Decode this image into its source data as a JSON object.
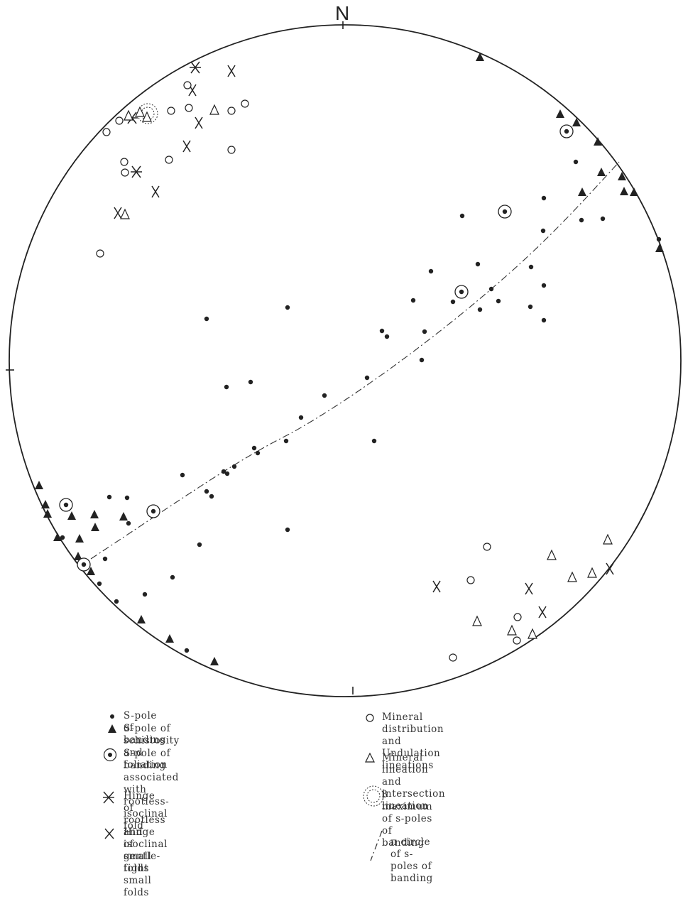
{
  "north_label": "N",
  "colors": {
    "ink": "#222222",
    "paper": "#ffffff"
  },
  "symbols": {
    "s_pole_banding": [
      [
        811,
        228
      ],
      [
        766,
        279
      ],
      [
        651,
        304
      ],
      [
        765,
        325
      ],
      [
        607,
        382
      ],
      [
        673,
        372
      ],
      [
        748,
        376
      ],
      [
        766,
        402
      ],
      [
        692,
        407
      ],
      [
        582,
        423
      ],
      [
        702,
        424
      ],
      [
        638,
        425
      ],
      [
        676,
        436
      ],
      [
        747,
        432
      ],
      [
        766,
        451
      ],
      [
        405,
        433
      ],
      [
        291,
        449
      ],
      [
        538,
        466
      ],
      [
        545,
        474
      ],
      [
        598,
        467
      ],
      [
        594,
        507
      ],
      [
        517,
        532
      ],
      [
        457,
        557
      ],
      [
        424,
        588
      ],
      [
        403,
        621
      ],
      [
        527,
        621
      ],
      [
        319,
        545
      ],
      [
        353,
        538
      ],
      [
        358,
        631
      ],
      [
        363,
        638
      ],
      [
        330,
        657
      ],
      [
        315,
        664
      ],
      [
        320,
        667
      ],
      [
        257,
        669
      ],
      [
        291,
        692
      ],
      [
        298,
        699
      ],
      [
        154,
        700
      ],
      [
        179,
        701
      ],
      [
        181,
        737
      ],
      [
        405,
        746
      ],
      [
        88,
        757
      ],
      [
        281,
        767
      ],
      [
        148,
        787
      ],
      [
        243,
        813
      ],
      [
        140,
        822
      ],
      [
        204,
        837
      ],
      [
        164,
        847
      ],
      [
        263,
        916
      ],
      [
        819,
        310
      ],
      [
        849,
        308
      ],
      [
        928,
        337
      ]
    ],
    "s_pole_schistosity": [
      [
        676,
        81
      ],
      [
        789,
        161
      ],
      [
        812,
        173
      ],
      [
        842,
        200
      ],
      [
        847,
        243
      ],
      [
        820,
        271
      ],
      [
        876,
        249
      ],
      [
        879,
        270
      ],
      [
        893,
        271
      ],
      [
        929,
        350
      ],
      [
        55,
        684
      ],
      [
        64,
        711
      ],
      [
        67,
        724
      ],
      [
        101,
        727
      ],
      [
        133,
        725
      ],
      [
        174,
        728
      ],
      [
        134,
        743
      ],
      [
        112,
        759
      ],
      [
        81,
        757
      ],
      [
        110,
        784
      ],
      [
        128,
        805
      ],
      [
        199,
        873
      ],
      [
        239,
        900
      ],
      [
        302,
        932
      ]
    ],
    "s_pole_banding_fold": [
      [
        798,
        185
      ],
      [
        711,
        298
      ],
      [
        650,
        411
      ],
      [
        93,
        711
      ],
      [
        216,
        720
      ],
      [
        118,
        795
      ]
    ],
    "hinge_rootless": [
      [
        275,
        95
      ],
      [
        186,
        166
      ],
      [
        192,
        242
      ]
    ],
    "hinge_gentle": [
      [
        326,
        100
      ],
      [
        271,
        127
      ],
      [
        280,
        173
      ],
      [
        263,
        206
      ],
      [
        219,
        270
      ],
      [
        166,
        300
      ],
      [
        615,
        826
      ],
      [
        745,
        829
      ],
      [
        764,
        862
      ],
      [
        859,
        801
      ]
    ],
    "mineral_distribution": [
      [
        264,
        120
      ],
      [
        168,
        170
      ],
      [
        150,
        186
      ],
      [
        241,
        156
      ],
      [
        266,
        152
      ],
      [
        326,
        156
      ],
      [
        345,
        146
      ],
      [
        326,
        211
      ],
      [
        238,
        225
      ],
      [
        175,
        228
      ],
      [
        176,
        243
      ],
      [
        141,
        357
      ],
      [
        686,
        770
      ],
      [
        663,
        817
      ],
      [
        729,
        869
      ],
      [
        728,
        902
      ],
      [
        638,
        926
      ]
    ],
    "mineral_lineation": [
      [
        181,
        163
      ],
      [
        197,
        158
      ],
      [
        207,
        165
      ],
      [
        302,
        155
      ],
      [
        176,
        302
      ],
      [
        856,
        760
      ],
      [
        777,
        782
      ],
      [
        806,
        813
      ],
      [
        834,
        807
      ],
      [
        672,
        875
      ],
      [
        721,
        888
      ],
      [
        750,
        893
      ]
    ]
  },
  "legend": {
    "s_pole_banding": "S-pole of banding",
    "s_pole_schistosity": "S-pole of schistosity and foliation",
    "s_pole_banding_fold": "S-pole of banding associated with\nrootless-isoclinal fold",
    "hinge_rootless": "Hinge of rootless and isoclinal\nsmall folds",
    "hinge_gentle": "Hinge of gentle-tight small\nfolds",
    "mineral_distribution": "Mineral distribution and\nUndulation lineations",
    "mineral_lineation": "Mineral lineation and\nintersection lineation",
    "beta_maximum": "β maximum of s-poles of\nbanding",
    "pi_circle": "π circle of s-poles of\nbanding"
  }
}
